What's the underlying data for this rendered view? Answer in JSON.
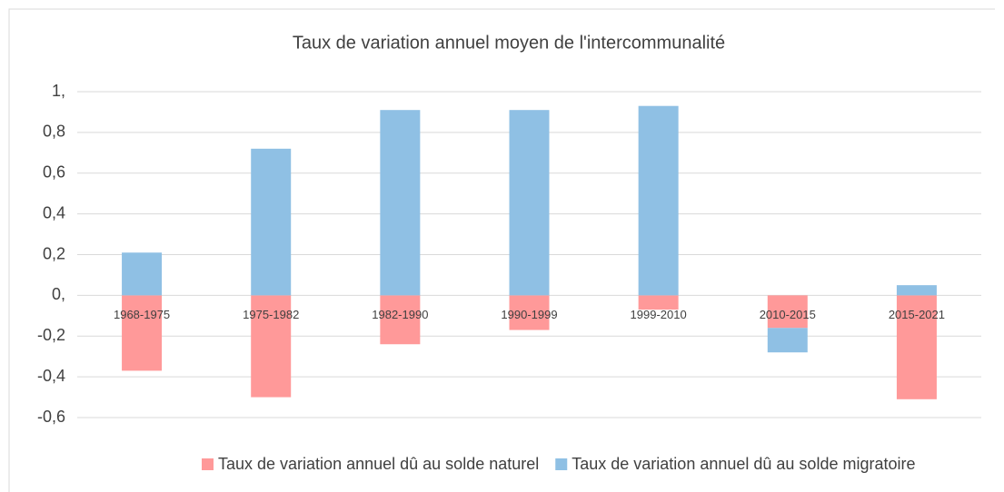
{
  "chart_data": {
    "type": "stacked_bar",
    "title": "Taux de variation annuel moyen de l'intercommunalité",
    "categories": [
      "1968-1975",
      "1975-1982",
      "1982-1990",
      "1990-1999",
      "1999-2010",
      "2010-2015",
      "2015-2021"
    ],
    "series": [
      {
        "name": "Taux de variation annuel dû au solde naturel",
        "color": "#ff9999",
        "values": [
          -0.37,
          -0.5,
          -0.24,
          -0.17,
          -0.07,
          -0.16,
          -0.51
        ]
      },
      {
        "name": "Taux de variation annuel dû au solde migratoire",
        "color": "#8fc0e4",
        "values": [
          0.21,
          0.72,
          0.91,
          0.91,
          0.93,
          -0.12,
          0.05
        ]
      }
    ],
    "ylim": [
      -0.6,
      1
    ],
    "yticks": [
      {
        "value": -0.6,
        "label": "-0,6"
      },
      {
        "value": -0.4,
        "label": "-0,4"
      },
      {
        "value": -0.2,
        "label": "-0,2"
      },
      {
        "value": 0,
        "label": "0,"
      },
      {
        "value": 0.2,
        "label": "0,2"
      },
      {
        "value": 0.4,
        "label": "0,4"
      },
      {
        "value": 0.6,
        "label": "0,6"
      },
      {
        "value": 0.8,
        "label": "0,8"
      },
      {
        "value": 1,
        "label": "1,"
      }
    ],
    "grid": true,
    "legend": "bottom"
  }
}
